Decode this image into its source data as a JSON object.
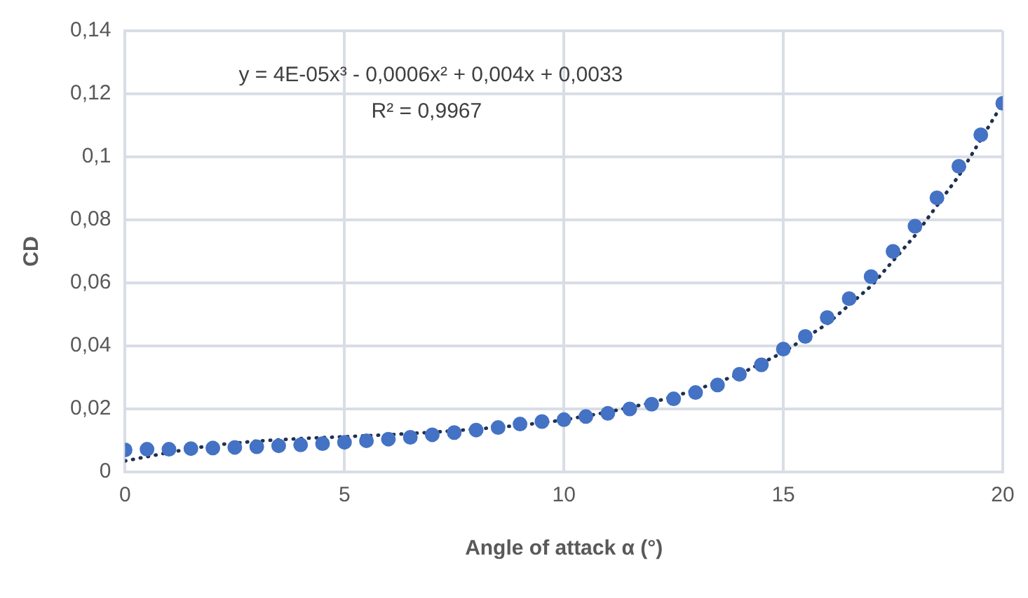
{
  "chart_data": {
    "type": "scatter",
    "xlabel": "Angle of attack α (°)",
    "ylabel": "CD",
    "annotations": [
      "y = 4E-05x³ - 0,0006x² + 0,004x + 0,0033",
      "R² = 0,9967"
    ],
    "xlim": [
      0,
      20
    ],
    "xticks": [
      0,
      5,
      10,
      15,
      20
    ],
    "ylim": [
      0,
      0.14
    ],
    "yticks": [
      {
        "value": 0,
        "label": "0"
      },
      {
        "value": 0.02,
        "label": "0,02"
      },
      {
        "value": 0.04,
        "label": "0,04"
      },
      {
        "value": 0.06,
        "label": "0,06"
      },
      {
        "value": 0.08,
        "label": "0,08"
      },
      {
        "value": 0.1,
        "label": "0,1"
      },
      {
        "value": 0.12,
        "label": "0,12"
      },
      {
        "value": 0.14,
        "label": "0,14"
      }
    ],
    "grid": true,
    "legend": false,
    "series": [
      {
        "marker": "circle",
        "color": "#4472c4",
        "x": [
          0,
          0.5,
          1,
          1.5,
          2,
          2.5,
          3,
          3.5,
          4,
          4.5,
          5,
          5.5,
          6,
          6.5,
          7,
          7.5,
          8,
          8.5,
          9,
          9.5,
          10,
          10.5,
          11,
          11.5,
          12,
          12.5,
          13,
          13.5,
          14,
          14.5,
          15,
          15.5,
          16,
          16.5,
          17,
          17.5,
          18,
          18.5,
          19,
          19.5,
          20
        ],
        "values": [
          0.007,
          0.0072,
          0.0072,
          0.0074,
          0.0076,
          0.0078,
          0.008,
          0.0083,
          0.0086,
          0.009,
          0.0094,
          0.0099,
          0.0104,
          0.011,
          0.0118,
          0.0125,
          0.0133,
          0.0141,
          0.0152,
          0.016,
          0.0166,
          0.0176,
          0.0186,
          0.02,
          0.0215,
          0.0232,
          0.0252,
          0.0276,
          0.031,
          0.034,
          0.039,
          0.043,
          0.049,
          0.055,
          0.062,
          0.07,
          0.078,
          0.087,
          0.097,
          0.107,
          0.117
        ]
      },
      {
        "type": "line",
        "marker": "none",
        "line_style": "dotted",
        "color": "#1f3050",
        "x": [
          0,
          1,
          2,
          3,
          4,
          5,
          6,
          7,
          8,
          9,
          10,
          11,
          12,
          13,
          14,
          15,
          16,
          17,
          18,
          19,
          20
        ],
        "values": [
          0.0035,
          0.0062,
          0.0085,
          0.0098,
          0.0106,
          0.0112,
          0.0118,
          0.0126,
          0.0136,
          0.0148,
          0.0165,
          0.019,
          0.022,
          0.026,
          0.031,
          0.038,
          0.047,
          0.059,
          0.075,
          0.094,
          0.117
        ]
      }
    ]
  }
}
